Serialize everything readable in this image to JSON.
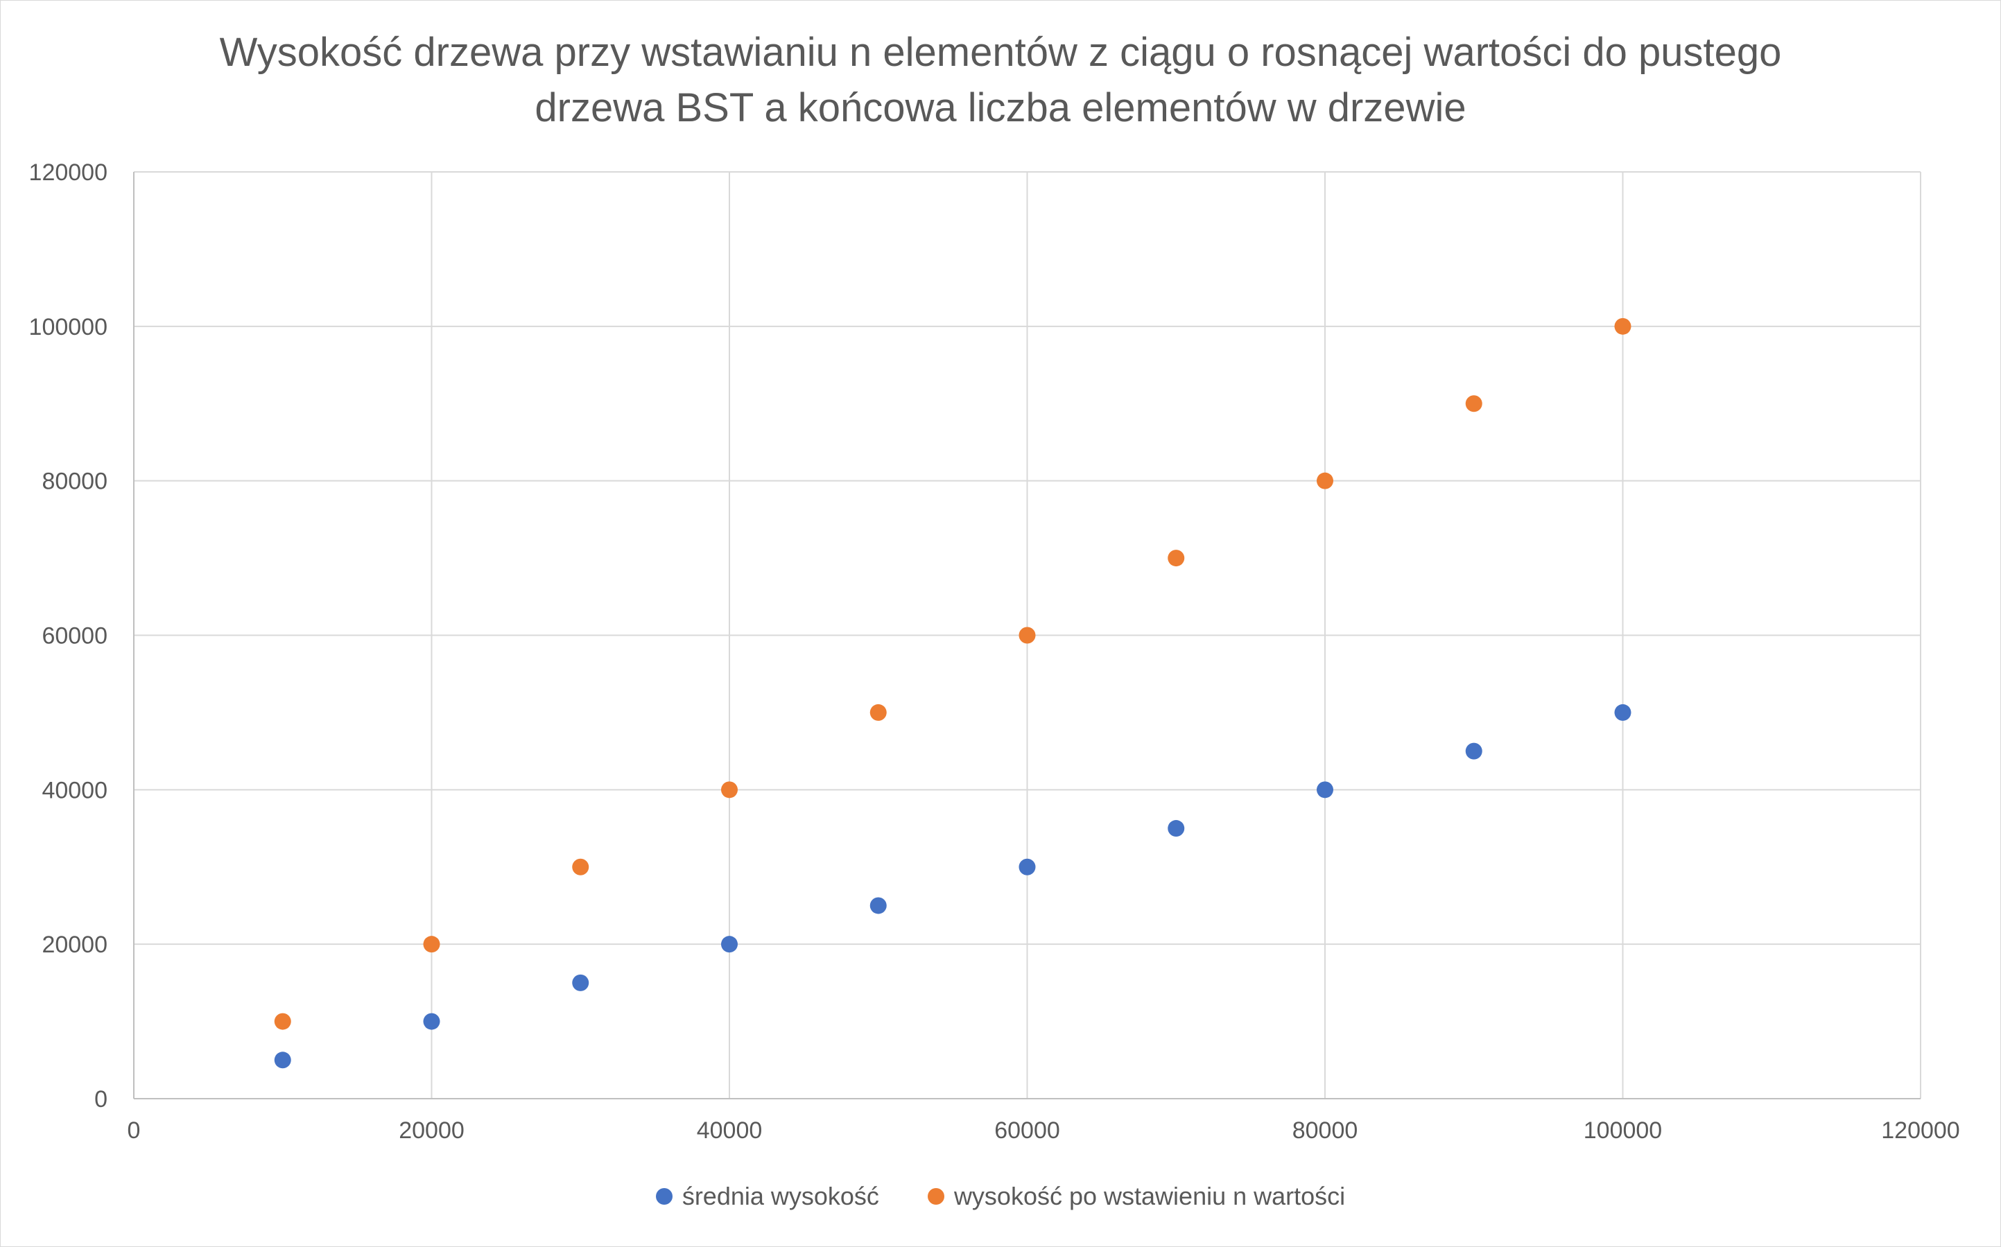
{
  "chart_data": {
    "type": "scatter",
    "title": "Wysokość drzewa przy wstawianiu n elementów z ciągu o rosnącej wartości do pustego\ndrzewa BST a końcowa liczba elementów w drzewie",
    "xlabel": "",
    "ylabel": "",
    "xlim": [
      0,
      120000
    ],
    "ylim": [
      0,
      120000
    ],
    "x_ticks": [
      0,
      20000,
      40000,
      60000,
      80000,
      100000,
      120000
    ],
    "y_ticks": [
      0,
      20000,
      40000,
      60000,
      80000,
      100000,
      120000
    ],
    "grid": true,
    "legend_position": "bottom",
    "series": [
      {
        "name": "średnia wysokość",
        "color": "#4472c4",
        "x": [
          10000,
          20000,
          30000,
          40000,
          50000,
          60000,
          70000,
          80000,
          90000,
          100000
        ],
        "y": [
          5000,
          10000,
          15000,
          20000,
          25000,
          30000,
          35000,
          40000,
          45000,
          50000
        ]
      },
      {
        "name": "wysokość po wstawieniu n wartości",
        "color": "#ed7d31",
        "x": [
          10000,
          20000,
          30000,
          40000,
          50000,
          60000,
          70000,
          80000,
          90000,
          100000
        ],
        "y": [
          10000,
          20000,
          30000,
          40000,
          50000,
          60000,
          70000,
          80000,
          90000,
          100000
        ]
      }
    ]
  }
}
